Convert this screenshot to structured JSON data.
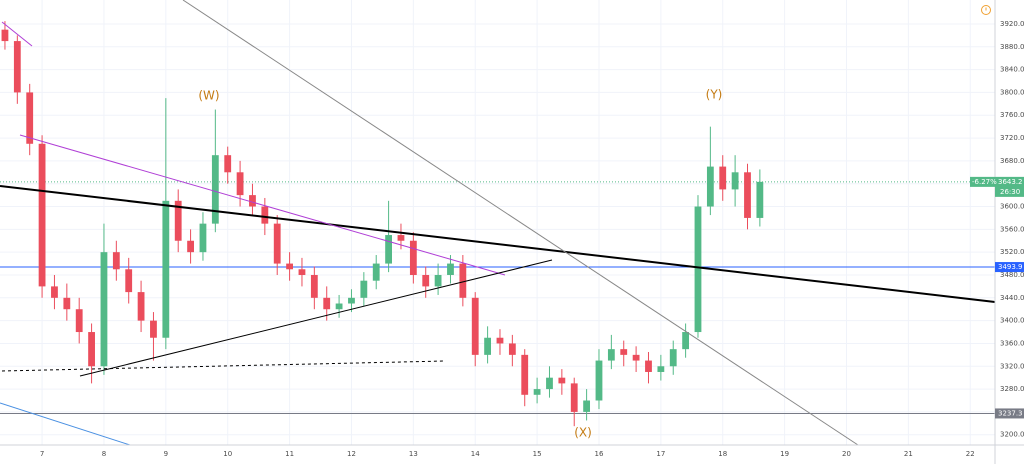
{
  "chart_data": {
    "type": "candlestick",
    "annotations": [
      "(W)",
      "(X)",
      "(Y)"
    ],
    "x": [
      6.4,
      6.6,
      6.8,
      7.0,
      7.2,
      7.4,
      7.6,
      7.8,
      8.0,
      8.2,
      8.4,
      8.6,
      8.8,
      9.0,
      9.2,
      9.4,
      9.6,
      9.8,
      10.0,
      10.2,
      10.4,
      10.6,
      10.8,
      11.0,
      11.2,
      11.4,
      11.6,
      11.8,
      12.0,
      12.2,
      12.4,
      12.6,
      12.8,
      13.0,
      13.2,
      13.4,
      13.6,
      13.8,
      14.0,
      14.2,
      14.4,
      14.6,
      14.8,
      15.0,
      15.2,
      15.4,
      15.6,
      15.8,
      16.0,
      16.2,
      16.4,
      16.6,
      16.8,
      17.0,
      17.2,
      17.4,
      17.6,
      17.8,
      18.0,
      18.2,
      18.4,
      18.6
    ],
    "open": [
      3910,
      3890,
      3800,
      3710,
      3460,
      3440,
      3420,
      3380,
      3320,
      3520,
      3490,
      3450,
      3400,
      3370,
      3610,
      3540,
      3520,
      3570,
      3690,
      3660,
      3620,
      3600,
      3570,
      3500,
      3490,
      3480,
      3440,
      3420,
      3430,
      3440,
      3470,
      3500,
      3550,
      3540,
      3480,
      3460,
      3480,
      3500,
      3440,
      3340,
      3370,
      3360,
      3340,
      3270,
      3280,
      3300,
      3290,
      3240,
      3260,
      3330,
      3350,
      3340,
      3330,
      3310,
      3320,
      3350,
      3380,
      3600,
      3670,
      3630,
      3660,
      3580
    ],
    "high": [
      3925,
      3900,
      3815,
      3725,
      3480,
      3465,
      3440,
      3395,
      3570,
      3540,
      3510,
      3470,
      3415,
      3790,
      3630,
      3560,
      3590,
      3770,
      3705,
      3680,
      3640,
      3615,
      3585,
      3520,
      3510,
      3495,
      3460,
      3445,
      3455,
      3485,
      3515,
      3610,
      3570,
      3555,
      3495,
      3500,
      3515,
      3515,
      3450,
      3390,
      3385,
      3375,
      3350,
      3300,
      3320,
      3315,
      3300,
      3280,
      3350,
      3375,
      3365,
      3355,
      3345,
      3340,
      3365,
      3395,
      3620,
      3740,
      3690,
      3690,
      3675,
      3665
    ],
    "low": [
      3875,
      3780,
      3690,
      3440,
      3420,
      3400,
      3360,
      3290,
      3305,
      3470,
      3430,
      3380,
      3330,
      3350,
      3520,
      3500,
      3505,
      3555,
      3640,
      3600,
      3585,
      3550,
      3480,
      3470,
      3460,
      3420,
      3400,
      3405,
      3415,
      3425,
      3455,
      3485,
      3525,
      3465,
      3440,
      3445,
      3465,
      3425,
      3320,
      3325,
      3340,
      3320,
      3250,
      3255,
      3265,
      3270,
      3215,
      3225,
      3245,
      3315,
      3320,
      3310,
      3290,
      3295,
      3305,
      3335,
      3370,
      3585,
      3610,
      3600,
      3560,
      3565
    ],
    "close": [
      3890,
      3800,
      3710,
      3460,
      3440,
      3420,
      3380,
      3320,
      3520,
      3490,
      3450,
      3400,
      3370,
      3610,
      3540,
      3520,
      3570,
      3690,
      3660,
      3620,
      3600,
      3570,
      3500,
      3490,
      3480,
      3440,
      3420,
      3430,
      3440,
      3470,
      3500,
      3550,
      3540,
      3480,
      3460,
      3480,
      3500,
      3440,
      3340,
      3370,
      3360,
      3340,
      3270,
      3280,
      3300,
      3290,
      3240,
      3260,
      3330,
      3350,
      3340,
      3330,
      3310,
      3320,
      3350,
      3380,
      3600,
      3670,
      3630,
      3660,
      3580,
      3643.2
    ],
    "up_color": "#53b987",
    "down_color": "#eb4d5c",
    "levels": [
      {
        "value": 3493.9,
        "color": "#2962ff"
      },
      {
        "value": 3237.3,
        "color": "#787b86"
      }
    ],
    "price_change": {
      "value": -6.27,
      "label": "-6.27%"
    },
    "countdown": "26:30",
    "xlim": [
      6.32,
      22.4
    ],
    "xticks": [
      7,
      8,
      9,
      10,
      11,
      12,
      13,
      14,
      15,
      16,
      17,
      18,
      19,
      20,
      21,
      22
    ],
    "ylim": [
      3182,
      3962
    ],
    "yticks": [
      {
        "value": 3200,
        "label": "3200.0"
      },
      {
        "value": 3240,
        "label": "3240.0"
      },
      {
        "value": 3280,
        "label": "3280.0"
      },
      {
        "value": 3320,
        "label": "3320.0"
      },
      {
        "value": 3360,
        "label": "3360.0"
      },
      {
        "value": 3400,
        "label": "3400.0"
      },
      {
        "value": 3440,
        "label": "3440.0"
      },
      {
        "value": 3480,
        "label": "3480.0"
      },
      {
        "value": 3520,
        "label": "3520.0"
      },
      {
        "value": 3560,
        "label": "3560.0"
      },
      {
        "value": 3600,
        "label": "3600.0"
      },
      {
        "value": 3640,
        "label": "3640.0"
      },
      {
        "value": 3680,
        "label": "3680.0"
      },
      {
        "value": 3720,
        "label": "3720.0"
      },
      {
        "value": 3760,
        "label": "3760.0"
      },
      {
        "value": 3800,
        "label": "3800.0"
      },
      {
        "value": 3840,
        "label": "3840.0"
      },
      {
        "value": 3880,
        "label": "3880.0"
      },
      {
        "value": 3920,
        "label": "3920.0"
      }
    ],
    "grid": true
  }
}
